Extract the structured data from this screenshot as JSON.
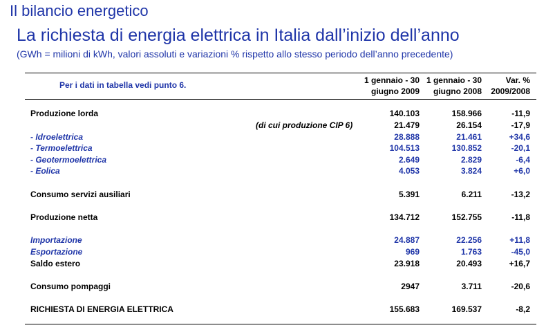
{
  "header": {
    "title": "Il bilancio energetico",
    "subtitle_main": "La richiesta di energia elettrica in Italia dall’inizio dell’anno",
    "subtitle_note": "(GWh = milioni di kWh, valori assoluti e variazioni % rispetto allo stesso periodo dell’anno precedente)"
  },
  "table": {
    "note": "Per i dati in tabella vedi punto 6.",
    "columns": [
      {
        "line1": "1 gennaio - 30",
        "line2": "giugno 2009"
      },
      {
        "line1": "1 gennaio - 30",
        "line2": "giugno 2008"
      },
      {
        "line1": "Var. %",
        "line2": "2009/2008"
      }
    ],
    "rows": [
      {
        "label": "Produzione lorda",
        "v1": "140.103",
        "v2": "158.966",
        "v3": "-11,9"
      },
      {
        "sublabel": "(di cui produzione CIP 6)",
        "v1": "21.479",
        "v2": "26.154",
        "v3": "-17,9"
      },
      {
        "label": "- Idroelettrica",
        "v1": "28.888",
        "v2": "21.461",
        "v3": "+34,6"
      },
      {
        "label": "- Termoelettrica",
        "v1": "104.513",
        "v2": "130.852",
        "v3": "-20,1"
      },
      {
        "label": "- Geotermoelettrica",
        "v1": "2.649",
        "v2": "2.829",
        "v3": "-6,4"
      },
      {
        "label": "- Eolica",
        "v1": "4.053",
        "v2": "3.824",
        "v3": "+6,0"
      },
      {
        "label": "Consumo servizi ausiliari",
        "v1": "5.391",
        "v2": "6.211",
        "v3": "-13,2"
      },
      {
        "label": "Produzione netta",
        "v1": "134.712",
        "v2": "152.755",
        "v3": "-11,8"
      },
      {
        "label": "Importazione",
        "v1": "24.887",
        "v2": "22.256",
        "v3": "+11,8"
      },
      {
        "label": "Esportazione",
        "v1": "969",
        "v2": "1.763",
        "v3": "-45,0"
      },
      {
        "label": "Saldo estero",
        "v1": "23.918",
        "v2": "20.493",
        "v3": "+16,7"
      },
      {
        "label": "Consumo pompaggi",
        "v1": "2947",
        "v2": "3.711",
        "v3": "-20,6"
      },
      {
        "label": "RICHIESTA DI ENERGIA ELETTRICA",
        "v1": "155.683",
        "v2": "169.537",
        "v3": "-8,2"
      }
    ]
  },
  "colors": {
    "title_blue": "#1f35a8",
    "text_black": "#000000"
  }
}
